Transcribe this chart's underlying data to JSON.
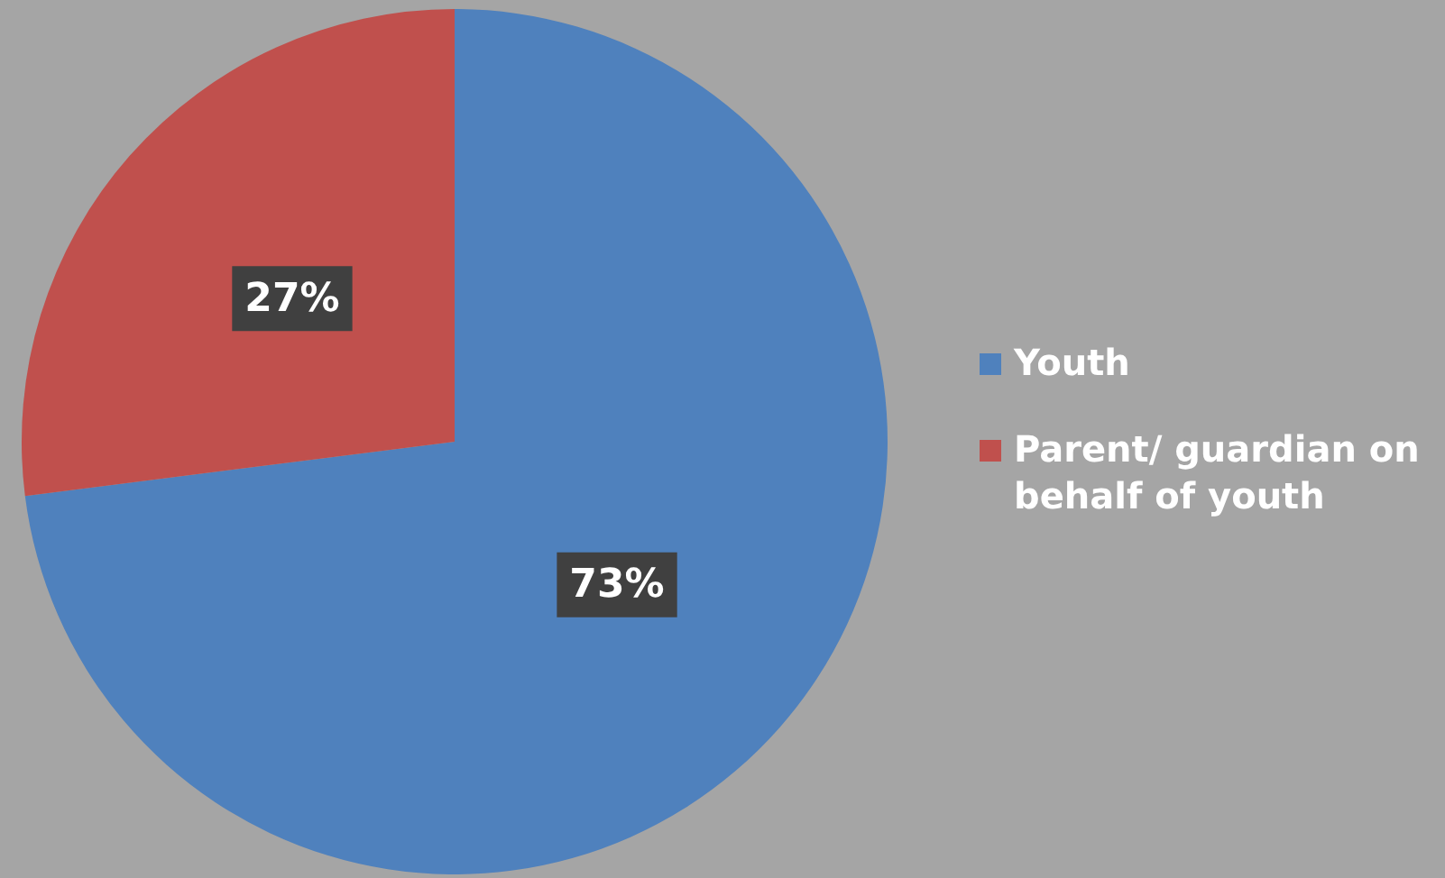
{
  "chart_data": {
    "type": "pie",
    "categories": [
      "Youth",
      "Parent/ guardian on behalf of youth"
    ],
    "values": [
      73,
      27
    ],
    "colors": [
      "#4f81bd",
      "#c0504d"
    ],
    "value_labels": [
      "73%",
      "27%"
    ],
    "legend": "right"
  }
}
